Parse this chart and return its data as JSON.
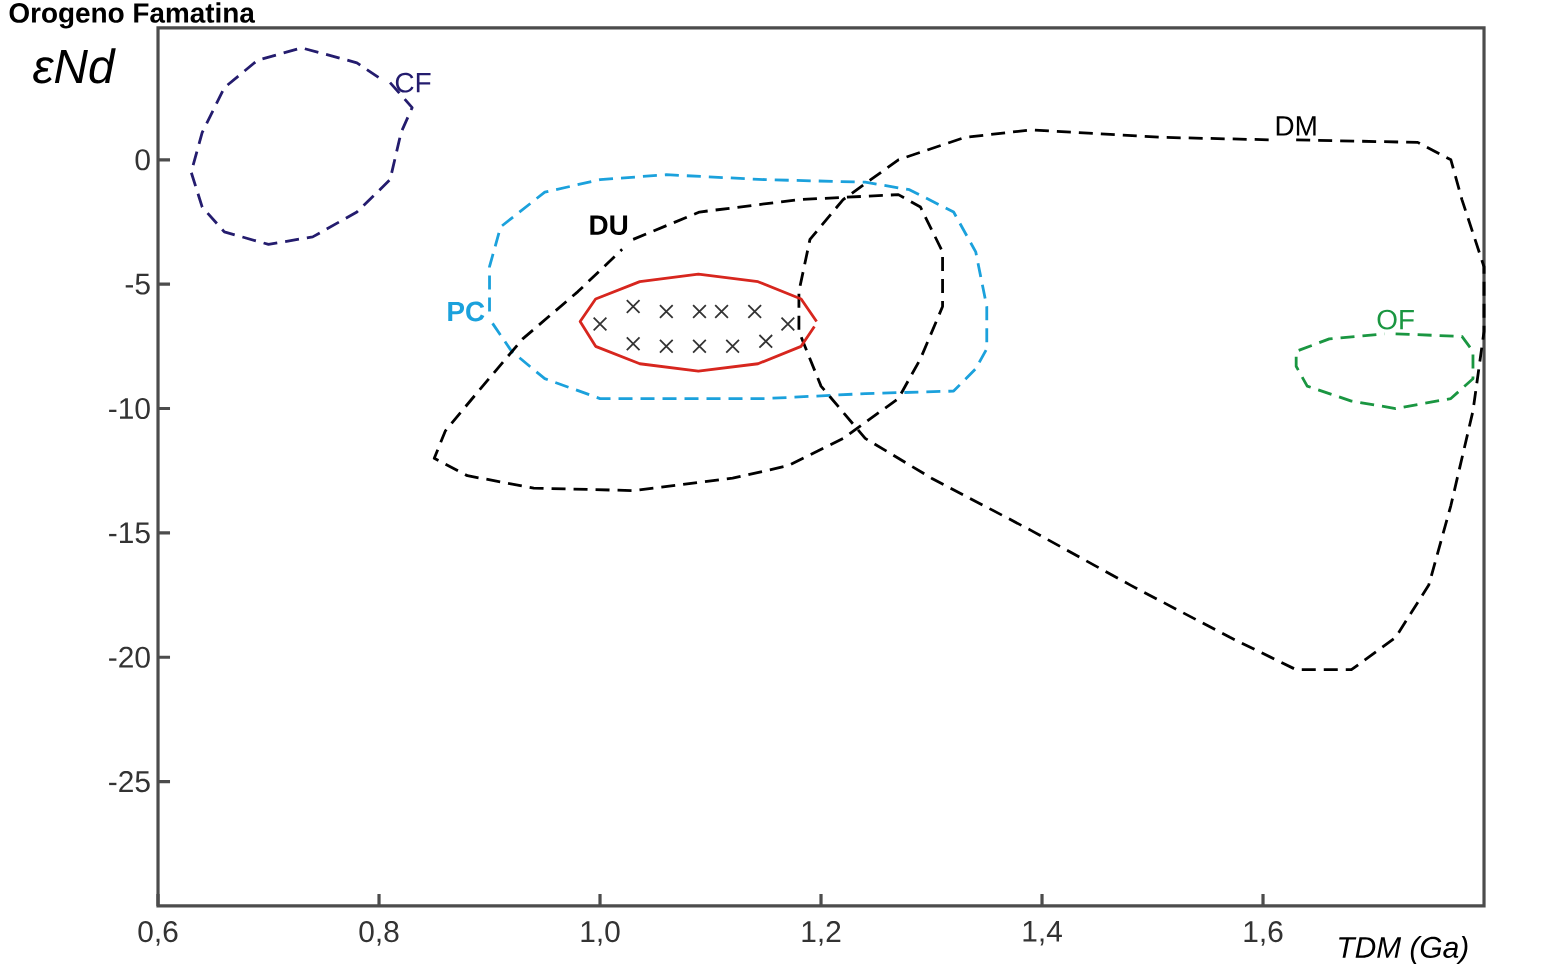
{
  "chart_data": {
    "type": "line",
    "title": "Orogeno Famatina",
    "xlabel": "TDM (Ga)",
    "ylabel": "εNd",
    "xlim": [
      0.6,
      1.8
    ],
    "ylim": [
      -30,
      5.3
    ],
    "xticks": [
      {
        "value": 0.6,
        "label": "0,6"
      },
      {
        "value": 0.8,
        "label": "0,8"
      },
      {
        "value": 1.0,
        "label": "1,0"
      },
      {
        "value": 1.2,
        "label": "1,2"
      },
      {
        "value": 1.4,
        "label": "1,4"
      },
      {
        "value": 1.6,
        "label": "1,6"
      }
    ],
    "yticks": [
      -25,
      -20,
      -15,
      -10,
      -5,
      0
    ],
    "grid": false,
    "series": [
      {
        "name": "CF",
        "color": "#241c6e",
        "line_style": "dashed",
        "x": [
          0.81,
          0.83,
          0.82,
          0.81,
          0.78,
          0.74,
          0.7,
          0.66,
          0.64,
          0.63,
          0.64,
          0.66,
          0.69,
          0.73,
          0.78,
          0.8
        ],
        "values": [
          3.1,
          2.1,
          1.1,
          -0.8,
          -2.1,
          -3.1,
          -3.4,
          -2.9,
          -1.9,
          -0.5,
          1.1,
          2.9,
          4.0,
          4.5,
          3.9,
          3.3
        ]
      },
      {
        "name": "PC",
        "color": "#1ba1dc",
        "line_style": "dashed",
        "x": [
          0.9,
          0.9,
          0.91,
          0.95,
          1.0,
          1.06,
          1.15,
          1.24,
          1.28,
          1.32,
          1.34,
          1.35,
          1.35,
          1.34,
          1.32,
          1.24,
          1.15,
          1.0,
          0.95,
          0.92,
          0.9
        ],
        "values": [
          -6.1,
          -4.3,
          -2.7,
          -1.3,
          -0.8,
          -0.6,
          -0.8,
          -0.9,
          -1.2,
          -2.1,
          -3.7,
          -5.9,
          -7.6,
          -8.4,
          -9.3,
          -9.4,
          -9.6,
          -9.6,
          -8.8,
          -7.7,
          -6.4
        ]
      },
      {
        "name": "DU",
        "color": "#000000",
        "line_style": "dashed",
        "x": [
          1.03,
          1.09,
          1.18,
          1.27,
          1.29,
          1.31,
          1.31,
          1.29,
          1.27,
          1.22,
          1.17,
          1.12,
          1.03,
          0.94,
          0.88,
          0.85,
          0.86,
          0.89,
          0.93,
          0.98,
          1.02
        ],
        "values": [
          -3.2,
          -2.1,
          -1.6,
          -1.4,
          -1.9,
          -3.7,
          -5.9,
          -8.0,
          -9.6,
          -11.2,
          -12.3,
          -12.8,
          -13.3,
          -13.2,
          -12.7,
          -12.0,
          -10.9,
          -9.3,
          -7.2,
          -5.3,
          -3.6
        ]
      },
      {
        "name": "DM",
        "color": "#000000",
        "line_style": "dashed",
        "x": [
          1.63,
          1.74,
          1.77,
          1.78,
          1.8,
          1.8,
          1.79,
          1.77,
          1.75,
          1.72,
          1.68,
          1.63,
          1.57,
          1.48,
          1.39,
          1.3,
          1.24,
          1.2,
          1.18,
          1.18,
          1.19,
          1.22,
          1.27,
          1.33,
          1.39,
          1.51,
          1.61
        ],
        "values": [
          0.8,
          0.7,
          0.0,
          -1.6,
          -4.3,
          -6.9,
          -10.1,
          -13.9,
          -17.1,
          -19.2,
          -20.5,
          -20.5,
          -19.2,
          -17.1,
          -14.9,
          -12.8,
          -11.2,
          -9.1,
          -6.9,
          -5.3,
          -3.2,
          -1.6,
          0.0,
          0.9,
          1.2,
          0.9,
          0.8
        ]
      },
      {
        "name": "OF",
        "color": "#1a9641",
        "line_style": "dashed",
        "x": [
          1.72,
          1.78,
          1.79,
          1.79,
          1.77,
          1.72,
          1.68,
          1.64,
          1.63,
          1.63,
          1.66,
          1.71
        ],
        "values": [
          -7.0,
          -7.1,
          -7.7,
          -8.8,
          -9.6,
          -10.0,
          -9.7,
          -9.1,
          -8.3,
          -7.7,
          -7.2,
          -7.0
        ]
      },
      {
        "color": "#d7261e",
        "line_style": "solid",
        "x": [
          1.196,
          1.182,
          1.143,
          1.089,
          1.036,
          0.996,
          0.982,
          0.996,
          1.036,
          1.089,
          1.143,
          1.182,
          1.194
        ],
        "values": [
          -6.5,
          -5.6,
          -4.9,
          -4.6,
          -4.9,
          -5.6,
          -6.5,
          -7.5,
          -8.2,
          -8.5,
          -8.2,
          -7.5,
          -6.7
        ]
      },
      {
        "type": "scatter",
        "color": "#333333",
        "marker": "cross",
        "x": [
          1.0,
          1.03,
          1.06,
          1.09,
          1.11,
          1.14,
          1.03,
          1.06,
          1.09,
          1.12,
          1.15,
          1.17
        ],
        "values": [
          -6.6,
          -5.9,
          -6.1,
          -6.1,
          -6.1,
          -6.1,
          -7.4,
          -7.5,
          -7.5,
          -7.5,
          -7.3,
          -6.6
        ]
      }
    ]
  }
}
